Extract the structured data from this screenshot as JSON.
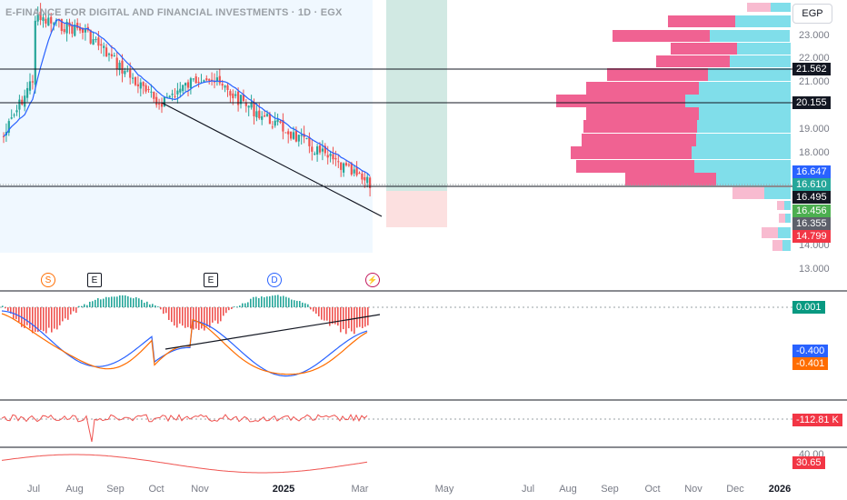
{
  "symbol_title": "E-FINANCE FOR DIGITAL AND FINANCIAL INVESTMENTS · 1D · EGX",
  "currency": "EGP",
  "price_axis": {
    "ticks": [
      "23.000",
      "22.000",
      "21.000",
      "20.000",
      "19.000",
      "18.000",
      "14.000",
      "13.000"
    ]
  },
  "price_labels": {
    "hline_1": "21.562",
    "hline_2": "20.155",
    "price_a": "16.647",
    "price_b": "16.610",
    "price_c": "16.495",
    "price_d": "16.456",
    "price_e": "16.355",
    "price_f": "14.799"
  },
  "macd_labels": {
    "hist": "0.001",
    "macd": "-0.400",
    "signal": "-0.401"
  },
  "volume_label": "-112.81 K",
  "rsi_labels": {
    "level": "40.00",
    "value": "30.65"
  },
  "events": [
    {
      "letter": "S",
      "kind": "split"
    },
    {
      "letter": "E",
      "kind": "earnings"
    },
    {
      "letter": "E",
      "kind": "earnings"
    },
    {
      "letter": "D",
      "kind": "dividend"
    },
    {
      "letter": "⚡",
      "kind": "news"
    }
  ],
  "time_axis": [
    "Jul",
    "Aug",
    "Sep",
    "Oct",
    "Nov",
    "2025",
    "Mar",
    "May",
    "Jul",
    "Aug",
    "Sep",
    "Oct",
    "Nov",
    "Dec",
    "2026"
  ],
  "colors": {
    "up": "#26a69a",
    "down": "#ef5350",
    "ma": "#2962ff",
    "signal": "#ff6d00",
    "profile_up": "#80deea",
    "profile_down": "#f06292",
    "profile_down_light": "#f8bbd0",
    "long_target": "#d1e9e3",
    "long_stop": "#fce0e0",
    "chart_bg": "#f0f8ff"
  }
}
